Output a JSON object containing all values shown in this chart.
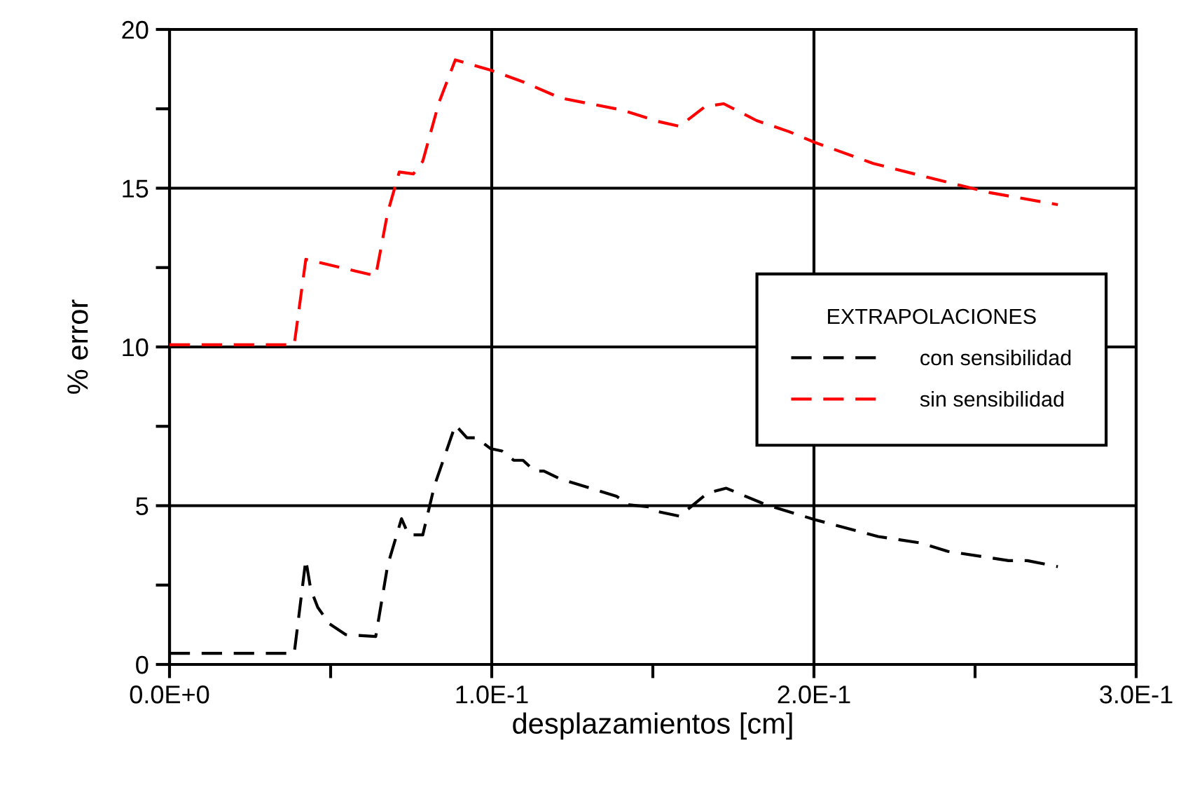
{
  "chart_data": {
    "type": "line",
    "xlabel": "desplazamientos [cm]",
    "ylabel": "% error",
    "legend_title": "EXTRAPOLACIONES",
    "legend": "right",
    "grid": true,
    "line_style": "dashed",
    "marker": "none",
    "xlim": [
      0,
      0.3
    ],
    "ylim": [
      0,
      20
    ],
    "xticks": [
      {
        "value": 0,
        "label": "0.0E+0"
      },
      {
        "value": 0.05,
        "label": null
      },
      {
        "value": 0.1,
        "label": "1.0E-1"
      },
      {
        "value": 0.15,
        "label": null
      },
      {
        "value": 0.2,
        "label": "2.0E-1"
      },
      {
        "value": 0.25,
        "label": null
      },
      {
        "value": 0.3,
        "label": "3.0E-1"
      }
    ],
    "yticks": [
      0,
      {
        "value": 2.5,
        "label": null
      },
      5,
      {
        "value": 7.5,
        "label": null
      },
      10,
      {
        "value": 12.5,
        "label": null
      },
      15,
      {
        "value": 17.5,
        "label": null
      },
      20
    ],
    "series": [
      {
        "name": "con sensibilidad",
        "color": "#000000",
        "x": [
          0,
          0.0387,
          0.0423,
          0.0438,
          0.046,
          0.0496,
          0.0547,
          0.064,
          0.0677,
          0.072,
          0.0742,
          0.0786,
          0.0822,
          0.0887,
          0.0923,
          0.0952,
          0.0996,
          0.1032,
          0.1068,
          0.1097,
          0.1133,
          0.1162,
          0.1213,
          0.1387,
          0.1423,
          0.1488,
          0.1503,
          0.1583,
          0.167,
          0.1728,
          0.1851,
          0.2003,
          0.2199,
          0.2329,
          0.2416,
          0.2604,
          0.2662,
          0.2757
        ],
        "values": [
          0.35,
          0.35,
          3.3,
          2.38,
          1.8,
          1.28,
          0.94,
          0.88,
          3.12,
          4.59,
          4.08,
          4.08,
          5.62,
          7.54,
          7.14,
          7.14,
          6.8,
          6.72,
          6.43,
          6.43,
          6.09,
          6.09,
          5.84,
          5.3,
          5.03,
          4.96,
          4.84,
          4.67,
          5.4,
          5.55,
          5.03,
          4.56,
          4.03,
          3.83,
          3.56,
          3.27,
          3.27,
          3.08
        ]
      },
      {
        "name": "sin sensibilidad",
        "color": "#ff0000",
        "x": [
          0,
          0.0387,
          0.0423,
          0.064,
          0.0677,
          0.0713,
          0.0757,
          0.0786,
          0.0836,
          0.0887,
          0.0996,
          0.1097,
          0.1213,
          0.1401,
          0.1517,
          0.1583,
          0.1662,
          0.172,
          0.1822,
          0.1923,
          0.2003,
          0.2184,
          0.2358,
          0.2546,
          0.2757
        ],
        "values": [
          10.07,
          10.07,
          12.76,
          12.24,
          14.23,
          15.51,
          15.45,
          15.85,
          17.69,
          19.04,
          18.72,
          18.35,
          17.84,
          17.47,
          17.1,
          16.95,
          17.57,
          17.66,
          17.13,
          16.78,
          16.44,
          15.78,
          15.33,
          14.86,
          14.48
        ]
      }
    ]
  }
}
